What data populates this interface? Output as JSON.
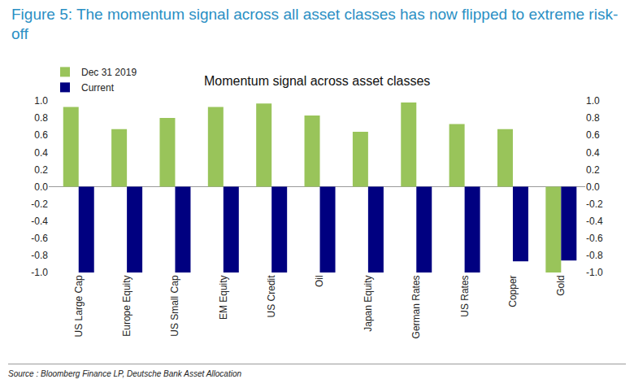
{
  "chart_data": {
    "type": "bar",
    "title": "Figure 5: The momentum signal across all asset classes has now flipped to extreme risk-off",
    "subtitle": "Momentum signal across asset classes",
    "annotations": [
      "Source : Bloomberg Finance LP, Deutsche Bank Asset Allocation"
    ],
    "categories": [
      "US Large Cap",
      "Europe Equity",
      "US Small Cap",
      "EM Equity",
      "US Credit",
      "Oil",
      "Japan Equity",
      "German Rates",
      "US Rates",
      "Copper",
      "Gold"
    ],
    "series": [
      {
        "name": "Dec 31 2019",
        "color": "#99c45a",
        "values": [
          0.93,
          0.67,
          0.8,
          0.93,
          0.97,
          0.83,
          0.64,
          0.98,
          0.73,
          0.67,
          -1.0
        ]
      },
      {
        "name": "Current",
        "color": "#000080",
        "values": [
          -1.0,
          -1.0,
          -1.0,
          -1.0,
          -1.0,
          -1.0,
          -1.0,
          -1.0,
          -1.0,
          -0.87,
          -0.86
        ]
      }
    ],
    "ylim": [
      -1,
      1
    ],
    "yticks": [
      {
        "value": 1,
        "label": "1.0"
      },
      {
        "value": 0.8,
        "label": "0.8"
      },
      {
        "value": 0.6,
        "label": "0.6"
      },
      {
        "value": 0.4,
        "label": "0.4"
      },
      {
        "value": 0.2,
        "label": "0.2"
      },
      {
        "value": 0,
        "label": "0.0"
      },
      {
        "value": -0.2,
        "label": "-0.2"
      },
      {
        "value": -0.4,
        "label": "-0.4"
      },
      {
        "value": -0.6,
        "label": "-0.6"
      },
      {
        "value": -0.8,
        "label": "-0.8"
      },
      {
        "value": -1,
        "label": "-1.0"
      }
    ],
    "y2lim": [
      -1,
      1
    ],
    "y2ticks": [
      {
        "value": 1,
        "label": "1.0"
      },
      {
        "value": 0.8,
        "label": "0.8"
      },
      {
        "value": 0.6,
        "label": "0.6"
      },
      {
        "value": 0.4,
        "label": "0.4"
      },
      {
        "value": 0.2,
        "label": "0.2"
      },
      {
        "value": 0,
        "label": "0.0"
      },
      {
        "value": -0.2,
        "label": "-0.2"
      },
      {
        "value": -0.4,
        "label": "-0.4"
      },
      {
        "value": -0.6,
        "label": "-0.6"
      },
      {
        "value": -0.8,
        "label": "-0.8"
      },
      {
        "value": -1,
        "label": "-1.0"
      }
    ],
    "grid": false,
    "legend": "top-left",
    "data_labels": false
  }
}
